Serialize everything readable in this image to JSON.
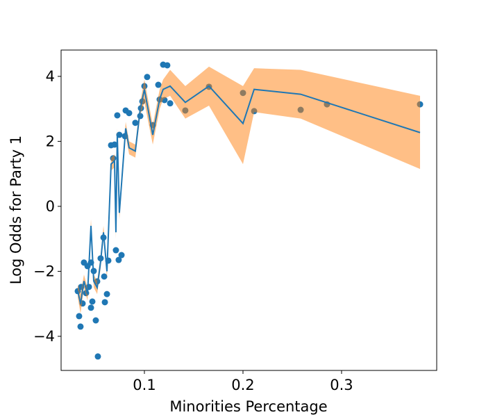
{
  "chart_data": {
    "type": "scatter",
    "xlabel": "Minorities Percentage",
    "ylabel": "Log Odds for Party 1",
    "xlim": [
      0.0155,
      0.3965
    ],
    "ylim": [
      -5.05,
      4.81
    ],
    "xticks": [
      0.1,
      0.2,
      0.3
    ],
    "yticks": [
      {
        "value": -4,
        "label": "−4"
      },
      {
        "value": -2,
        "label": "−2"
      },
      0,
      2,
      4
    ],
    "series": [
      {
        "type": "scatter",
        "color": "#1f77b4",
        "x": [
          0.0324,
          0.0338,
          0.0352,
          0.0359,
          0.0373,
          0.0387,
          0.0408,
          0.0423,
          0.0437,
          0.0458,
          0.0458,
          0.0472,
          0.0486,
          0.0507,
          0.0521,
          0.0528,
          0.0556,
          0.0585,
          0.0592,
          0.0599,
          0.062,
          0.0634,
          0.0662,
          0.0683,
          0.0697,
          0.0711,
          0.0725,
          0.0739,
          0.0746,
          0.0768,
          0.0803,
          0.081,
          0.0845,
          0.0908,
          0.0958,
          0.0965,
          0.0979,
          0.1,
          0.1028,
          0.1085,
          0.1141,
          0.1155,
          0.119,
          0.1204,
          0.1232,
          0.1261,
          0.1415,
          0.1655,
          0.2,
          0.2113,
          0.2585,
          0.2852,
          0.3796
        ],
        "values": [
          -2.61,
          -3.38,
          -3.7,
          -2.48,
          -2.99,
          -1.73,
          -2.67,
          -1.84,
          -2.48,
          -1.73,
          -3.12,
          -2.93,
          -1.99,
          -3.51,
          -2.31,
          -4.62,
          -1.6,
          -0.96,
          -2.16,
          -2.95,
          -2.7,
          -1.67,
          1.88,
          1.48,
          1.9,
          -1.35,
          2.8,
          -1.65,
          2.2,
          -1.5,
          2.16,
          2.95,
          2.87,
          2.57,
          2.78,
          3.02,
          3.23,
          3.7,
          3.98,
          2.5,
          3.74,
          3.29,
          4.36,
          3.27,
          4.34,
          3.17,
          2.95,
          3.68,
          3.49,
          2.93,
          2.97,
          3.14,
          3.14
        ]
      },
      {
        "type": "line",
        "color": "#1f77b4",
        "band_color": "#ff7f0e",
        "x": [
          0.0324,
          0.0352,
          0.0387,
          0.0423,
          0.0458,
          0.0486,
          0.0521,
          0.0556,
          0.0585,
          0.062,
          0.0662,
          0.0697,
          0.0711,
          0.0725,
          0.0746,
          0.081,
          0.0845,
          0.0908,
          0.0958,
          0.1,
          0.1085,
          0.1155,
          0.119,
          0.1261,
          0.1415,
          0.1655,
          0.2,
          0.2113,
          0.2585,
          0.3796
        ],
        "values": [
          -2.6,
          -3.0,
          -2.3,
          -2.7,
          -0.6,
          -2.3,
          -2.5,
          -1.7,
          -0.8,
          -2.0,
          1.3,
          1.4,
          -0.8,
          2.2,
          -0.2,
          2.4,
          1.8,
          1.7,
          3.0,
          3.6,
          2.2,
          3.3,
          3.6,
          3.7,
          3.2,
          3.7,
          2.55,
          3.6,
          3.45,
          2.27
        ],
        "lower": [
          -2.8,
          -3.3,
          -2.5,
          -2.9,
          -0.8,
          -2.5,
          -2.7,
          -1.9,
          -1.0,
          -2.2,
          1.1,
          1.2,
          -1.0,
          2.0,
          -0.4,
          2.2,
          1.6,
          1.5,
          2.8,
          3.2,
          1.9,
          3.0,
          3.3,
          3.4,
          2.7,
          3.1,
          1.3,
          2.9,
          2.7,
          1.15
        ],
        "upper": [
          -2.4,
          -2.7,
          -2.1,
          -2.5,
          -0.4,
          -2.1,
          -2.3,
          -1.5,
          -0.6,
          -1.8,
          1.5,
          1.6,
          -0.6,
          2.4,
          0.0,
          2.6,
          2.0,
          1.9,
          3.2,
          3.9,
          2.5,
          3.6,
          3.9,
          4.2,
          3.7,
          4.3,
          3.7,
          4.25,
          4.2,
          3.4
        ]
      }
    ]
  }
}
